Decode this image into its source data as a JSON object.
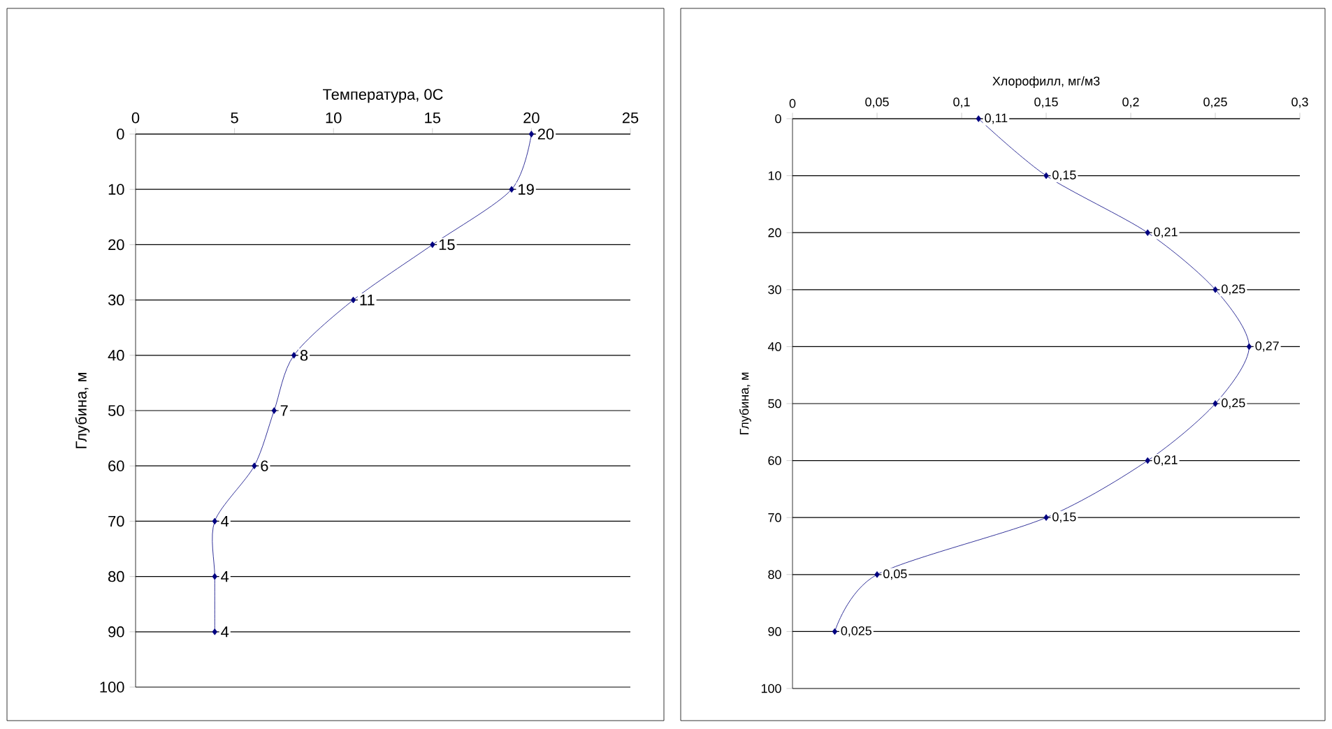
{
  "chart_data": [
    {
      "type": "line",
      "xlabel": "Температура, 0С",
      "ylabel": "Глубина, м",
      "orientation": "horizontal",
      "values": [
        20,
        19,
        15,
        11,
        8,
        7,
        6,
        4,
        4,
        4
      ],
      "x": [
        0,
        10,
        20,
        30,
        40,
        50,
        60,
        70,
        80,
        90
      ],
      "value_labels": [
        "20",
        "19",
        "15",
        "11",
        "8",
        "7",
        "6",
        "4",
        "4",
        "4"
      ],
      "color": "#000080",
      "marker": "diamond",
      "grid": "y",
      "xlim": [
        0,
        25
      ],
      "xticks": [
        0,
        5,
        10,
        15,
        20,
        25
      ],
      "ylim": [
        100,
        0
      ],
      "yticks": [
        0,
        10,
        20,
        30,
        40,
        50,
        60,
        70,
        80,
        90,
        100
      ]
    },
    {
      "type": "line",
      "xlabel": "Хлорофилл, мг/м3",
      "ylabel": "Глубина, м",
      "orientation": "horizontal",
      "values": [
        0.11,
        0.15,
        0.21,
        0.25,
        0.27,
        0.25,
        0.21,
        0.15,
        0.05,
        0.025
      ],
      "x": [
        0,
        10,
        20,
        30,
        40,
        50,
        60,
        70,
        80,
        90
      ],
      "value_labels": [
        "0,11",
        "0,15",
        "0,21",
        "0,25",
        "0,27",
        "0,25",
        "0,21",
        "0,15",
        "0,05",
        "0,025"
      ],
      "color": "#000080",
      "marker": "diamond",
      "grid": "y",
      "xlim": [
        0,
        0.3
      ],
      "xticks": [
        0,
        {
          "value": 0.05,
          "label": "0,05"
        },
        {
          "value": 0.1,
          "label": "0,1"
        },
        {
          "value": 0.15,
          "label": "0,15"
        },
        {
          "value": 0.2,
          "label": "0,2"
        },
        {
          "value": 0.25,
          "label": "0,25"
        },
        {
          "value": 0.3,
          "label": "0,3"
        }
      ],
      "ylim": [
        100,
        0
      ],
      "yticks": [
        0,
        10,
        20,
        30,
        40,
        50,
        60,
        70,
        80,
        90,
        100
      ]
    }
  ]
}
